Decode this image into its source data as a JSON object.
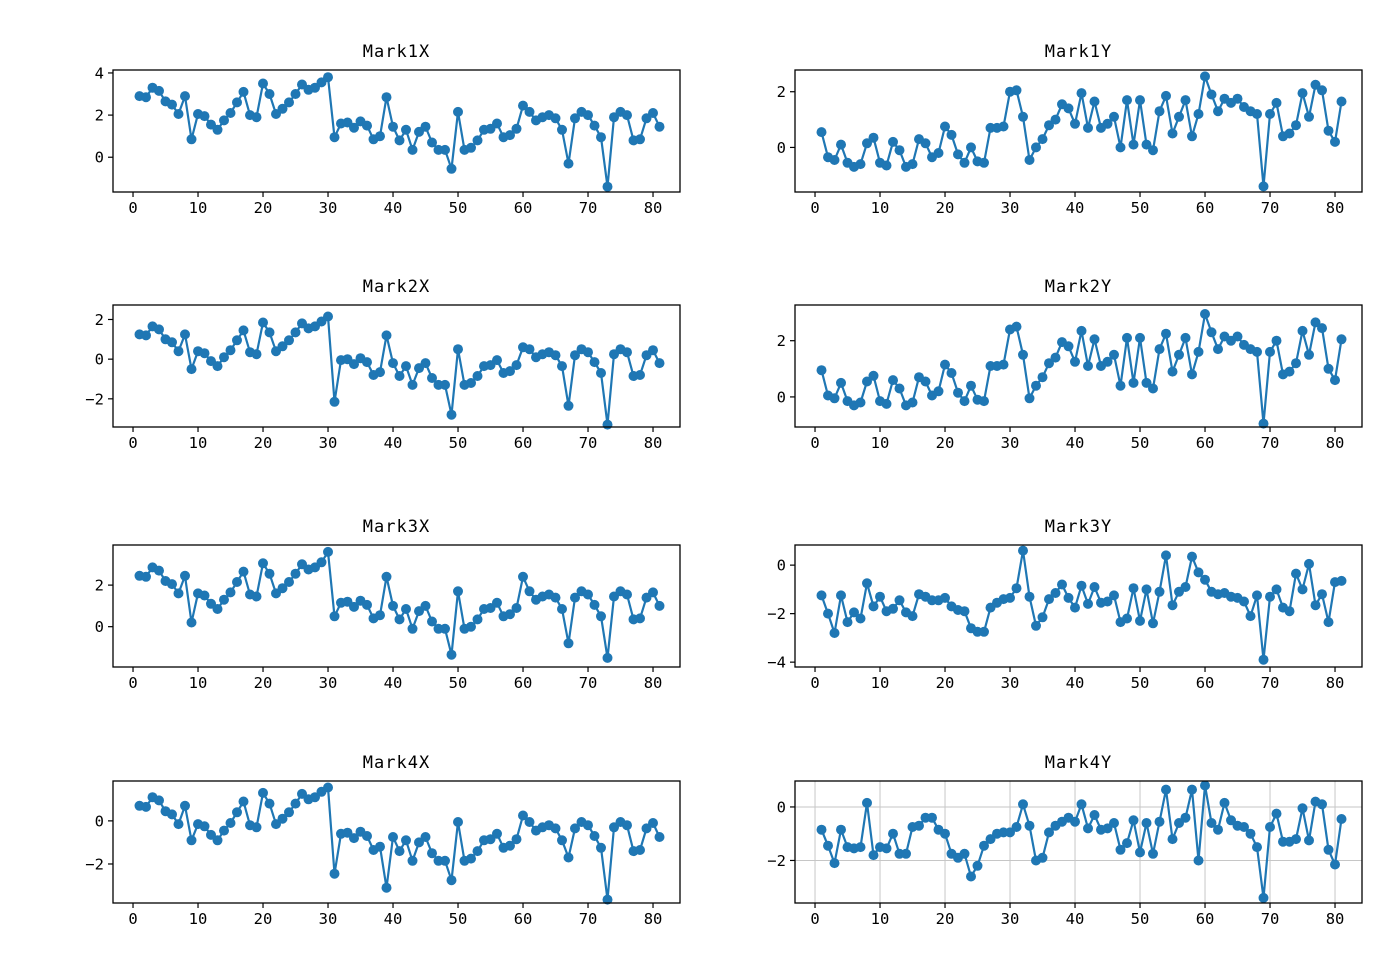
{
  "figure": {
    "background": "#ffffff",
    "accent_color": "#1f77b4",
    "axis_color": "#000000",
    "grid_color": "#c6c6c6"
  },
  "chart_data": [
    {
      "id": "mark1x",
      "type": "line",
      "title": "Mark1X",
      "marker": "circle",
      "color": "#1f77b4",
      "row": 1,
      "col": "left",
      "grid": false,
      "x_start": 1,
      "xticks": [
        0,
        10,
        20,
        30,
        40,
        50,
        60,
        70,
        80
      ],
      "yticks": [
        0,
        2,
        4
      ],
      "xlim": [
        -3.08,
        84.15
      ],
      "ylim": [
        -1.65,
        4.14
      ],
      "values": [
        2.9,
        2.85,
        3.3,
        3.15,
        2.65,
        2.5,
        2.05,
        2.9,
        0.85,
        2.05,
        1.95,
        1.55,
        1.3,
        1.75,
        2.1,
        2.6,
        3.1,
        2.0,
        1.9,
        3.5,
        3.0,
        2.05,
        2.3,
        2.6,
        3.0,
        3.45,
        3.2,
        3.3,
        3.55,
        3.8,
        0.95,
        1.6,
        1.65,
        1.4,
        1.7,
        1.5,
        0.85,
        1.0,
        2.85,
        1.45,
        0.8,
        1.3,
        0.35,
        1.2,
        1.45,
        0.7,
        0.35,
        0.35,
        -0.55,
        2.15,
        0.35,
        0.45,
        0.8,
        1.3,
        1.35,
        1.6,
        0.95,
        1.05,
        1.35,
        2.45,
        2.15,
        1.75,
        1.9,
        2.0,
        1.85,
        1.3,
        -0.3,
        1.85,
        2.15,
        2.0,
        1.5,
        0.95,
        -1.4,
        1.9,
        2.15,
        2.0,
        0.8,
        0.85,
        1.85,
        2.1,
        1.45
      ]
    },
    {
      "id": "mark1y",
      "type": "line",
      "title": "Mark1Y",
      "marker": "circle",
      "color": "#1f77b4",
      "row": 1,
      "col": "right",
      "grid": false,
      "x_start": 1,
      "xticks": [
        0,
        10,
        20,
        30,
        40,
        50,
        60,
        70,
        80
      ],
      "yticks": [
        0,
        2
      ],
      "xlim": [
        -3.08,
        84.15
      ],
      "ylim": [
        -1.6,
        2.78
      ],
      "values": [
        0.55,
        -0.35,
        -0.45,
        0.1,
        -0.55,
        -0.7,
        -0.6,
        0.15,
        0.35,
        -0.55,
        -0.65,
        0.2,
        -0.1,
        -0.7,
        -0.6,
        0.3,
        0.15,
        -0.35,
        -0.2,
        0.75,
        0.45,
        -0.25,
        -0.55,
        0.0,
        -0.5,
        -0.55,
        0.7,
        0.7,
        0.75,
        2.0,
        2.05,
        1.1,
        -0.45,
        0.0,
        0.3,
        0.8,
        1.0,
        1.55,
        1.4,
        0.85,
        1.95,
        0.7,
        1.65,
        0.7,
        0.85,
        1.1,
        0.0,
        1.7,
        0.1,
        1.7,
        0.1,
        -0.1,
        1.3,
        1.85,
        0.5,
        1.1,
        1.7,
        0.4,
        1.2,
        2.55,
        1.9,
        1.3,
        1.75,
        1.6,
        1.75,
        1.45,
        1.3,
        1.2,
        -1.4,
        1.2,
        1.6,
        0.4,
        0.5,
        0.8,
        1.95,
        1.1,
        2.25,
        2.05,
        0.6,
        0.2,
        1.65
      ]
    },
    {
      "id": "mark2x",
      "type": "line",
      "title": "Mark2X",
      "marker": "circle",
      "color": "#1f77b4",
      "row": 2,
      "col": "left",
      "grid": false,
      "x_start": 1,
      "xticks": [
        0,
        10,
        20,
        30,
        40,
        50,
        60,
        70,
        80
      ],
      "yticks": [
        -2,
        0,
        2
      ],
      "xlim": [
        -3.08,
        84.15
      ],
      "ylim": [
        -3.42,
        2.73
      ],
      "values": [
        1.25,
        1.2,
        1.65,
        1.5,
        1.0,
        0.85,
        0.4,
        1.25,
        -0.5,
        0.4,
        0.3,
        -0.1,
        -0.35,
        0.1,
        0.45,
        0.95,
        1.45,
        0.35,
        0.25,
        1.85,
        1.35,
        0.4,
        0.65,
        0.95,
        1.35,
        1.8,
        1.55,
        1.65,
        1.9,
        2.15,
        -2.15,
        -0.05,
        0.0,
        -0.25,
        0.05,
        -0.15,
        -0.8,
        -0.65,
        1.2,
        -0.2,
        -0.85,
        -0.35,
        -1.3,
        -0.45,
        -0.2,
        -0.95,
        -1.3,
        -1.3,
        -2.8,
        0.5,
        -1.3,
        -1.2,
        -0.85,
        -0.35,
        -0.3,
        -0.05,
        -0.7,
        -0.6,
        -0.3,
        0.6,
        0.5,
        0.1,
        0.25,
        0.35,
        0.2,
        -0.35,
        -2.35,
        0.2,
        0.5,
        0.35,
        -0.15,
        -0.7,
        -3.3,
        0.25,
        0.5,
        0.35,
        -0.85,
        -0.8,
        0.2,
        0.45,
        -0.2
      ]
    },
    {
      "id": "mark2y",
      "type": "line",
      "title": "Mark2Y",
      "marker": "circle",
      "color": "#1f77b4",
      "row": 2,
      "col": "right",
      "grid": false,
      "x_start": 1,
      "xticks": [
        0,
        10,
        20,
        30,
        40,
        50,
        60,
        70,
        80
      ],
      "yticks": [
        0,
        2
      ],
      "xlim": [
        -3.08,
        84.15
      ],
      "ylim": [
        -1.07,
        3.27
      ],
      "values": [
        0.95,
        0.05,
        -0.05,
        0.5,
        -0.15,
        -0.3,
        -0.2,
        0.55,
        0.75,
        -0.15,
        -0.25,
        0.6,
        0.3,
        -0.3,
        -0.2,
        0.7,
        0.55,
        0.05,
        0.2,
        1.15,
        0.85,
        0.15,
        -0.15,
        0.4,
        -0.1,
        -0.15,
        1.1,
        1.1,
        1.15,
        2.4,
        2.5,
        1.5,
        -0.05,
        0.4,
        0.7,
        1.2,
        1.4,
        1.95,
        1.8,
        1.25,
        2.35,
        1.1,
        2.05,
        1.1,
        1.25,
        1.5,
        0.4,
        2.1,
        0.5,
        2.1,
        0.5,
        0.3,
        1.7,
        2.25,
        0.9,
        1.5,
        2.1,
        0.8,
        1.6,
        2.95,
        2.3,
        1.7,
        2.15,
        2.0,
        2.15,
        1.85,
        1.7,
        1.6,
        -0.95,
        1.6,
        2.0,
        0.8,
        0.9,
        1.2,
        2.35,
        1.5,
        2.65,
        2.45,
        1.0,
        0.6,
        2.05
      ]
    },
    {
      "id": "mark3x",
      "type": "line",
      "title": "Mark3X",
      "marker": "circle",
      "color": "#1f77b4",
      "row": 3,
      "col": "left",
      "grid": false,
      "x_start": 1,
      "xticks": [
        0,
        10,
        20,
        30,
        40,
        50,
        60,
        70,
        80
      ],
      "yticks": [
        0,
        2
      ],
      "xlim": [
        -3.08,
        84.15
      ],
      "ylim": [
        -1.94,
        3.93
      ],
      "values": [
        2.45,
        2.4,
        2.85,
        2.7,
        2.2,
        2.05,
        1.6,
        2.45,
        0.2,
        1.6,
        1.5,
        1.1,
        0.85,
        1.3,
        1.65,
        2.15,
        2.65,
        1.55,
        1.45,
        3.05,
        2.55,
        1.6,
        1.85,
        2.15,
        2.55,
        3.0,
        2.75,
        2.85,
        3.1,
        3.6,
        0.5,
        1.15,
        1.2,
        0.95,
        1.25,
        1.05,
        0.4,
        0.55,
        2.4,
        1.0,
        0.35,
        0.85,
        -0.1,
        0.75,
        1.0,
        0.25,
        -0.1,
        -0.1,
        -1.35,
        1.7,
        -0.1,
        0.0,
        0.35,
        0.85,
        0.9,
        1.15,
        0.5,
        0.6,
        0.9,
        2.4,
        1.7,
        1.3,
        1.45,
        1.55,
        1.4,
        0.85,
        -0.8,
        1.4,
        1.7,
        1.55,
        1.05,
        0.5,
        -1.5,
        1.45,
        1.7,
        1.55,
        0.35,
        0.4,
        1.4,
        1.65,
        1.0
      ]
    },
    {
      "id": "mark3y",
      "type": "line",
      "title": "Mark3Y",
      "marker": "circle",
      "color": "#1f77b4",
      "row": 3,
      "col": "right",
      "grid": false,
      "x_start": 1,
      "xticks": [
        0,
        10,
        20,
        30,
        40,
        50,
        60,
        70,
        80
      ],
      "yticks": [
        -4,
        -2,
        0
      ],
      "xlim": [
        -3.08,
        84.15
      ],
      "ylim": [
        -4.2,
        0.83
      ],
      "values": [
        -1.25,
        -2.0,
        -2.8,
        -1.25,
        -2.35,
        -1.95,
        -2.2,
        -0.75,
        -1.7,
        -1.3,
        -1.9,
        -1.8,
        -1.45,
        -1.95,
        -2.1,
        -1.2,
        -1.3,
        -1.45,
        -1.45,
        -1.35,
        -1.7,
        -1.85,
        -1.9,
        -2.6,
        -2.75,
        -2.75,
        -1.75,
        -1.55,
        -1.4,
        -1.35,
        -0.95,
        0.6,
        -1.3,
        -2.5,
        -2.15,
        -1.4,
        -1.15,
        -0.8,
        -1.35,
        -1.75,
        -0.85,
        -1.6,
        -0.9,
        -1.55,
        -1.5,
        -1.25,
        -2.35,
        -2.2,
        -0.95,
        -2.3,
        -1.0,
        -2.4,
        -1.1,
        0.4,
        -1.65,
        -1.1,
        -0.9,
        0.35,
        -0.3,
        -0.6,
        -1.1,
        -1.2,
        -1.15,
        -1.3,
        -1.35,
        -1.5,
        -2.1,
        -1.25,
        -3.9,
        -1.3,
        -1.0,
        -1.75,
        -1.9,
        -0.35,
        -1.0,
        0.05,
        -1.65,
        -1.2,
        -2.35,
        -0.7,
        -0.65
      ]
    },
    {
      "id": "mark4x",
      "type": "line",
      "title": "Mark4X",
      "marker": "circle",
      "color": "#1f77b4",
      "row": 4,
      "col": "left",
      "grid": false,
      "x_start": 1,
      "xticks": [
        0,
        10,
        20,
        30,
        40,
        50,
        60,
        70,
        80
      ],
      "yticks": [
        -2,
        0
      ],
      "xlim": [
        -3.08,
        84.15
      ],
      "ylim": [
        -3.81,
        1.85
      ],
      "values": [
        0.7,
        0.65,
        1.1,
        0.95,
        0.45,
        0.3,
        -0.15,
        0.7,
        -0.9,
        -0.15,
        -0.25,
        -0.65,
        -0.9,
        -0.45,
        -0.1,
        0.4,
        0.9,
        -0.2,
        -0.3,
        1.3,
        0.8,
        -0.15,
        0.1,
        0.4,
        0.8,
        1.25,
        1.0,
        1.1,
        1.35,
        1.55,
        -2.45,
        -0.6,
        -0.55,
        -0.8,
        -0.5,
        -0.7,
        -1.35,
        -1.2,
        -3.1,
        -0.75,
        -1.4,
        -0.9,
        -1.85,
        -1.0,
        -0.75,
        -1.5,
        -1.85,
        -1.85,
        -2.75,
        -0.05,
        -1.85,
        -1.75,
        -1.4,
        -0.9,
        -0.85,
        -0.6,
        -1.25,
        -1.15,
        -0.85,
        0.25,
        -0.05,
        -0.45,
        -0.3,
        -0.2,
        -0.35,
        -0.9,
        -1.7,
        -0.35,
        -0.05,
        -0.2,
        -0.7,
        -1.25,
        -3.65,
        -0.3,
        -0.05,
        -0.2,
        -1.4,
        -1.35,
        -0.35,
        -0.1,
        -0.75
      ]
    },
    {
      "id": "mark4y",
      "type": "line",
      "title": "Mark4Y",
      "marker": "circle",
      "color": "#1f77b4",
      "row": 4,
      "col": "right",
      "grid": true,
      "x_start": 1,
      "xticks": [
        0,
        10,
        20,
        30,
        40,
        50,
        60,
        70,
        80
      ],
      "yticks": [
        -2,
        0
      ],
      "xlim": [
        -3.08,
        84.15
      ],
      "ylim": [
        -3.59,
        0.97
      ],
      "values": [
        -0.85,
        -1.45,
        -2.1,
        -0.85,
        -1.5,
        -1.55,
        -1.5,
        0.15,
        -1.8,
        -1.5,
        -1.55,
        -1.0,
        -1.75,
        -1.75,
        -0.75,
        -0.7,
        -0.4,
        -0.4,
        -0.85,
        -1.0,
        -1.75,
        -1.9,
        -1.75,
        -2.6,
        -2.2,
        -1.45,
        -1.2,
        -1.0,
        -0.95,
        -0.95,
        -0.75,
        0.1,
        -0.7,
        -2.0,
        -1.9,
        -0.95,
        -0.7,
        -0.55,
        -0.4,
        -0.55,
        0.1,
        -0.8,
        -0.3,
        -0.85,
        -0.8,
        -0.6,
        -1.6,
        -1.35,
        -0.5,
        -1.7,
        -0.6,
        -1.75,
        -0.55,
        0.65,
        -1.2,
        -0.6,
        -0.4,
        0.65,
        -2.0,
        0.8,
        -0.6,
        -0.85,
        0.15,
        -0.5,
        -0.7,
        -0.75,
        -1.0,
        -1.5,
        -3.4,
        -0.75,
        -0.25,
        -1.3,
        -1.3,
        -1.2,
        -0.05,
        -1.25,
        0.2,
        0.1,
        -1.6,
        -2.15,
        -0.45
      ]
    }
  ]
}
